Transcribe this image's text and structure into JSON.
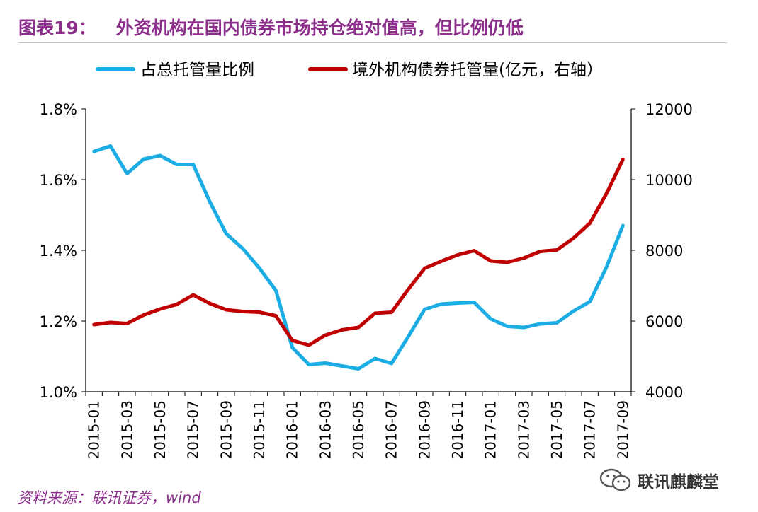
{
  "header": {
    "title_prefix": "图表19：",
    "title": "外资机构在国内债券市场持仓绝对值高，但比例仍低"
  },
  "footer": {
    "source": "资料来源：联讯证券，wind",
    "watermark": "联讯麒麟堂",
    "watermark_icon": "wechat-icon"
  },
  "colors": {
    "series1": "#1CADE4",
    "series2": "#C00000",
    "title": "#8B2F8B"
  },
  "chart_data": {
    "type": "line",
    "x": [
      "2015-01",
      "2015-02",
      "2015-03",
      "2015-04",
      "2015-05",
      "2015-06",
      "2015-07",
      "2015-08",
      "2015-09",
      "2015-10",
      "2015-11",
      "2015-12",
      "2016-01",
      "2016-02",
      "2016-03",
      "2016-04",
      "2016-05",
      "2016-06",
      "2016-07",
      "2016-08",
      "2016-09",
      "2016-10",
      "2016-11",
      "2016-12",
      "2017-01",
      "2017-02",
      "2017-03",
      "2017-04",
      "2017-05",
      "2017-06",
      "2017-07",
      "2017-08",
      "2017-09"
    ],
    "x_ticks": [
      "2015-01",
      "2015-03",
      "2015-05",
      "2015-07",
      "2015-09",
      "2015-11",
      "2016-01",
      "2016-03",
      "2016-05",
      "2016-07",
      "2016-09",
      "2016-11",
      "2017-01",
      "2017-03",
      "2017-05",
      "2017-07",
      "2017-09"
    ],
    "y_left": {
      "ticks": [
        "1.8%",
        "1.6%",
        "1.4%",
        "1.2%",
        "1.0%"
      ],
      "range": [
        1.0,
        1.8
      ]
    },
    "y_right": {
      "ticks": [
        "12000",
        "10000",
        "8000",
        "6000",
        "4000"
      ],
      "range": [
        4000,
        12000
      ]
    },
    "legend_position": "top",
    "grid": false,
    "series": [
      {
        "name": "占总托管量比例",
        "axis": "left",
        "values": [
          1.68,
          1.695,
          1.617,
          1.658,
          1.668,
          1.643,
          1.643,
          1.538,
          1.447,
          1.405,
          1.35,
          1.287,
          1.125,
          1.077,
          1.081,
          1.073,
          1.065,
          1.094,
          1.08,
          1.155,
          1.233,
          1.248,
          1.251,
          1.253,
          1.206,
          1.185,
          1.182,
          1.192,
          1.195,
          1.228,
          1.255,
          1.352,
          1.47
        ]
      },
      {
        "name": "境外机构债券托管量(亿元，右轴）",
        "axis": "right",
        "values": [
          5900,
          5960,
          5930,
          6170,
          6340,
          6470,
          6740,
          6500,
          6320,
          6270,
          6250,
          6150,
          5450,
          5320,
          5600,
          5750,
          5820,
          6220,
          6250,
          6890,
          7490,
          7690,
          7870,
          7990,
          7700,
          7660,
          7780,
          7970,
          8010,
          8340,
          8770,
          9600,
          10570
        ]
      }
    ]
  }
}
